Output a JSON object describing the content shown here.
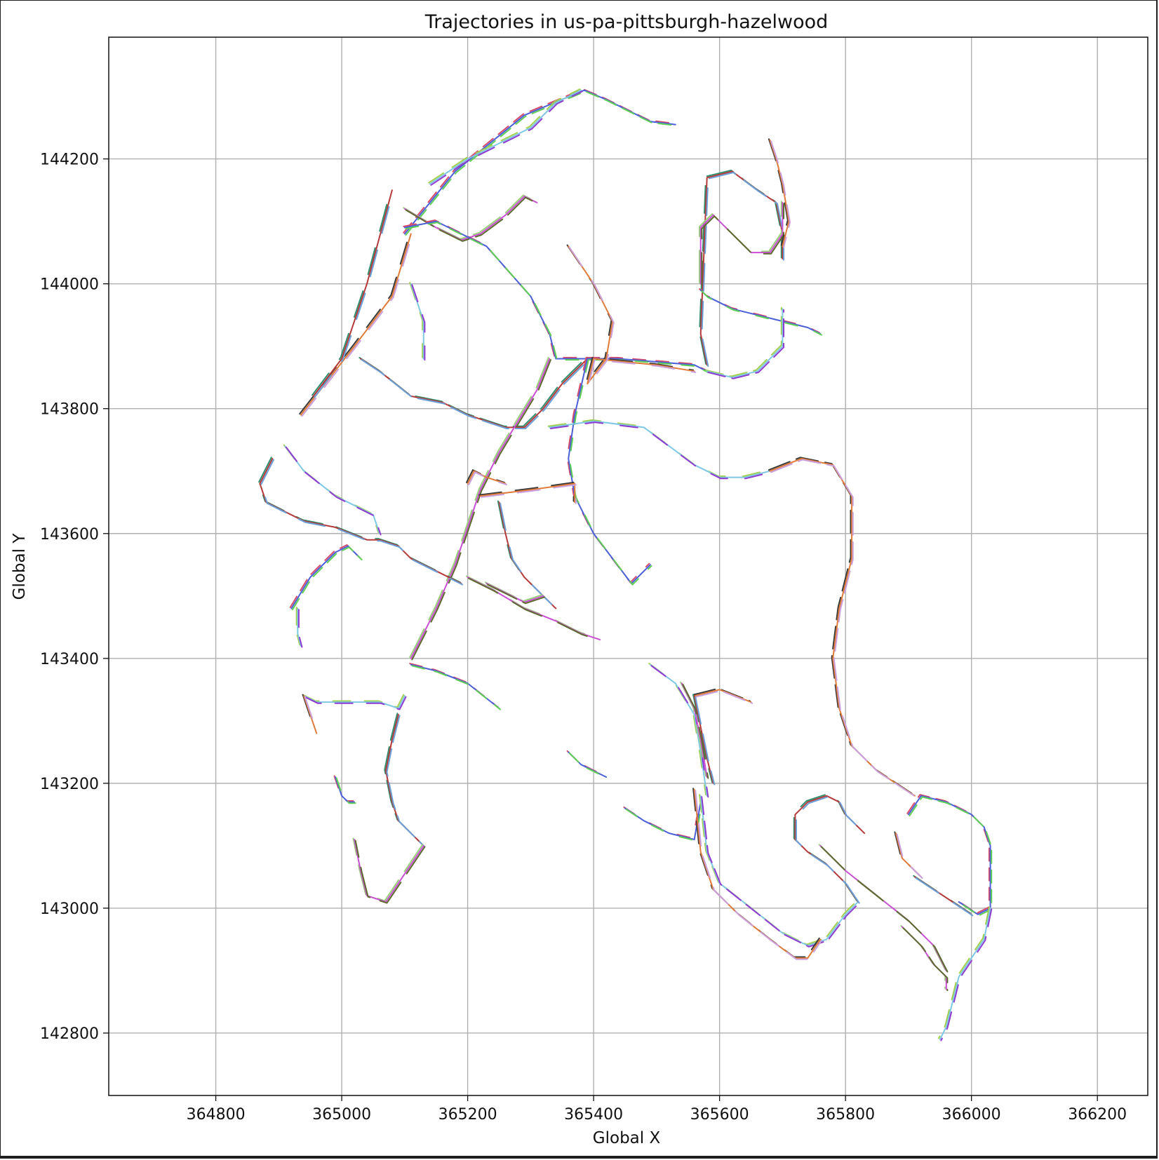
{
  "chart_data": {
    "type": "line",
    "title": "Trajectories in us-pa-pittsburgh-hazelwood",
    "xlabel": "Global X",
    "ylabel": "Global Y",
    "xlim": [
      364630,
      366280
    ],
    "ylim": [
      142700,
      144395
    ],
    "xticks": [
      364800,
      365000,
      365200,
      365400,
      365600,
      365800,
      366000,
      366200
    ],
    "yticks": [
      142800,
      143000,
      143200,
      143400,
      143600,
      143800,
      144000,
      144200
    ],
    "xtick_labels": [
      "364800",
      "365000",
      "365200",
      "365400",
      "365600",
      "365800",
      "366000",
      "366200"
    ],
    "ytick_labels": [
      "142800",
      "143000",
      "143200",
      "143400",
      "143600",
      "143800",
      "144000",
      "144200"
    ],
    "grid": true,
    "legend": "none",
    "palette": [
      "#d94b6a",
      "#4a5fd8",
      "#5fcf55",
      "#a4d04e",
      "#7ec8e3",
      "#8e3bd0",
      "#3a3a3a",
      "#e07b39",
      "#c9a0dc",
      "#2f8f6f",
      "#b43a3a",
      "#6a9fd8",
      "#9ad17b",
      "#c94fd3",
      "#5e6b2e"
    ],
    "series": [
      {
        "x": [
          365100,
          365180,
          365290,
          365385,
          365420,
          365490,
          365530
        ],
        "y": [
          144080,
          144180,
          144270,
          144310,
          144295,
          144260,
          144255
        ]
      },
      {
        "x": [
          365140,
          365200,
          365300,
          365340,
          365380
        ],
        "y": [
          144160,
          144200,
          144250,
          144290,
          144310
        ]
      },
      {
        "x": [
          364935,
          365020,
          365080,
          365110
        ],
        "y": [
          143790,
          143900,
          143980,
          144080
        ]
      },
      {
        "x": [
          364955,
          365000,
          365040,
          365080
        ],
        "y": [
          143820,
          143880,
          144000,
          144150
        ]
      },
      {
        "x": [
          365100,
          365150,
          365190,
          365220,
          365260,
          365290,
          365310
        ],
        "y": [
          144120,
          144090,
          144070,
          144080,
          144110,
          144140,
          144130
        ]
      },
      {
        "x": [
          365100,
          365150,
          365230,
          365300,
          365330,
          365340,
          365440,
          365560,
          365580
        ],
        "y": [
          144090,
          144100,
          144060,
          143980,
          143920,
          143880,
          143880,
          143870,
          143860
        ]
      },
      {
        "x": [
          365110,
          365130,
          365130
        ],
        "y": [
          144000,
          143940,
          143880
        ]
      },
      {
        "x": [
          365360,
          365400,
          365430,
          365420,
          365390,
          365400,
          365500,
          365560
        ],
        "y": [
          144060,
          144000,
          143940,
          143880,
          143840,
          143880,
          143870,
          143860
        ]
      },
      {
        "x": [
          365030,
          365060,
          365110,
          365160,
          365200,
          365260,
          365290,
          365320,
          365350,
          365380,
          365390
        ],
        "y": [
          143880,
          143860,
          143820,
          143810,
          143790,
          143770,
          143770,
          143800,
          143840,
          143870,
          143880
        ]
      },
      {
        "x": [
          365330,
          365310,
          365280,
          365250,
          365220,
          365200,
          365180,
          365150,
          365120,
          365110
        ],
        "y": [
          143880,
          143830,
          143780,
          143730,
          143670,
          143610,
          143550,
          143480,
          143420,
          143400
        ]
      },
      {
        "x": [
          365390,
          365370,
          365360,
          365370,
          365400,
          365430,
          365460,
          365490
        ],
        "y": [
          143880,
          143790,
          143720,
          143660,
          143600,
          143560,
          143520,
          143550
        ]
      },
      {
        "x": [
          365330,
          365400,
          365480,
          365520,
          365560,
          365580,
          365600,
          365640,
          365680
        ],
        "y": [
          143770,
          143780,
          143770,
          143740,
          143710,
          143700,
          143690,
          143690,
          143700
        ]
      },
      {
        "x": [
          365680,
          365730,
          365780,
          365810,
          365810,
          365790,
          365780,
          365790,
          365810,
          365850,
          365910
        ],
        "y": [
          143700,
          143720,
          143710,
          143660,
          143560,
          143480,
          143400,
          143320,
          143260,
          143220,
          143180
        ]
      },
      {
        "x": [
          365580,
          365570,
          365580,
          365620,
          365660,
          365690,
          365700,
          365700
        ],
        "y": [
          143870,
          143920,
          144170,
          144180,
          144150,
          144130,
          144080,
          144040
        ]
      },
      {
        "x": [
          365570,
          365570,
          365590,
          365620,
          365650,
          365680,
          365700,
          365700
        ],
        "y": [
          144000,
          144090,
          144110,
          144080,
          144050,
          144050,
          144080,
          144130
        ]
      },
      {
        "x": [
          365570,
          365580,
          365620,
          365660,
          365700,
          365740,
          365760
        ],
        "y": [
          143990,
          143980,
          143960,
          143950,
          143940,
          143930,
          143920
        ]
      },
      {
        "x": [
          365580,
          365620,
          365660,
          365700,
          365700
        ],
        "y": [
          143860,
          143850,
          143860,
          143900,
          143960
        ]
      },
      {
        "x": [
          365680,
          365690,
          365700,
          365710,
          365700
        ],
        "y": [
          144230,
          144200,
          144160,
          144100,
          144060
        ]
      },
      {
        "x": [
          364890,
          364870,
          364880,
          364900,
          364940,
          364990,
          365040,
          365060,
          365090,
          365110,
          365150,
          365190
        ],
        "y": [
          143720,
          143680,
          143650,
          143640,
          143620,
          143610,
          143590,
          143590,
          143580,
          143560,
          143540,
          143520
        ]
      },
      {
        "x": [
          365200,
          365240,
          365290,
          365340,
          365380,
          365410
        ],
        "y": [
          143530,
          143510,
          143480,
          143460,
          143440,
          143430
        ]
      },
      {
        "x": [
          364920,
          364950,
          364990,
          365010,
          365030
        ],
        "y": [
          143480,
          143530,
          143570,
          143580,
          143560
        ]
      },
      {
        "x": [
          364930,
          364930,
          364935
        ],
        "y": [
          143480,
          143440,
          143420
        ]
      },
      {
        "x": [
          365220,
          365300,
          365370,
          365370
        ],
        "y": [
          143660,
          143670,
          143680,
          143650
        ]
      },
      {
        "x": [
          365250,
          365260,
          365270,
          365290,
          365320,
          365340
        ],
        "y": [
          143650,
          143600,
          143560,
          143530,
          143500,
          143480
        ]
      },
      {
        "x": [
          365230,
          365250,
          365270,
          365290,
          365320
        ],
        "y": [
          143520,
          143510,
          143500,
          143490,
          143500
        ]
      },
      {
        "x": [
          365110,
          365150,
          365200,
          365250
        ],
        "y": [
          143390,
          143380,
          143360,
          143320
        ]
      },
      {
        "x": [
          364940,
          364960,
          365000,
          365020,
          365060,
          365090,
          365100
        ],
        "y": [
          143340,
          143330,
          143330,
          143330,
          143330,
          143320,
          143340
        ]
      },
      {
        "x": [
          364940,
          364950,
          364960
        ],
        "y": [
          143340,
          143310,
          143280
        ]
      },
      {
        "x": [
          365090,
          365080,
          365070,
          365080,
          365090,
          365110,
          365130
        ],
        "y": [
          143310,
          143270,
          143220,
          143170,
          143140,
          143120,
          143100
        ]
      },
      {
        "x": [
          365130,
          365110,
          365090,
          365070,
          365040,
          365030,
          365020
        ],
        "y": [
          143100,
          143070,
          143040,
          143010,
          143020,
          143060,
          143110
        ]
      },
      {
        "x": [
          364990,
          365000,
          365010,
          365020
        ],
        "y": [
          143210,
          143180,
          143170,
          143170
        ]
      },
      {
        "x": [
          365490,
          365530,
          365560,
          365570,
          365580
        ],
        "y": [
          143390,
          143360,
          143310,
          143250,
          143180
        ]
      },
      {
        "x": [
          365560,
          365580,
          365600,
          365650
        ],
        "y": [
          143340,
          143345,
          143350,
          143330
        ]
      },
      {
        "x": [
          365560,
          365570,
          365580,
          365590
        ],
        "y": [
          143340,
          143290,
          143240,
          143200
        ]
      },
      {
        "x": [
          365540,
          365560,
          365570,
          365580
        ],
        "y": [
          143360,
          143320,
          143270,
          143210
        ]
      },
      {
        "x": [
          365450,
          365480,
          365520,
          365560,
          365570
        ],
        "y": [
          143160,
          143140,
          143120,
          143110,
          143170
        ]
      },
      {
        "x": [
          365570,
          365580,
          365600,
          365650,
          365700,
          365740,
          365770,
          365800,
          365820
        ],
        "y": [
          143180,
          143090,
          143040,
          143000,
          142960,
          142940,
          142950,
          142990,
          143010
        ]
      },
      {
        "x": [
          365560,
          365570,
          365590,
          365630,
          365680,
          365720,
          365740,
          365760
        ],
        "y": [
          143190,
          143090,
          143030,
          142990,
          142950,
          142920,
          142920,
          142950
        ]
      },
      {
        "x": [
          365820,
          365800,
          365770,
          365740,
          365720,
          365720,
          365740,
          365770,
          365790,
          365800,
          365830
        ],
        "y": [
          143010,
          143040,
          143070,
          143090,
          143110,
          143150,
          143170,
          143180,
          143170,
          143150,
          143120
        ]
      },
      {
        "x": [
          365760,
          365800,
          365850,
          365900,
          365940,
          365960
        ],
        "y": [
          143100,
          143060,
          143020,
          142980,
          142940,
          142900
        ]
      },
      {
        "x": [
          365900,
          365920,
          365960,
          366000,
          366020,
          366030,
          366030,
          366010,
          365980
        ],
        "y": [
          143150,
          143180,
          143170,
          143150,
          143130,
          143100,
          143000,
          142990,
          143010
        ]
      },
      {
        "x": [
          366030,
          366020,
          366000,
          365980,
          365970,
          365960,
          365950
        ],
        "y": [
          143000,
          142950,
          142920,
          142890,
          142850,
          142810,
          142790
        ]
      },
      {
        "x": [
          365880,
          365890,
          365910,
          365920
        ],
        "y": [
          143120,
          143080,
          143060,
          143050
        ]
      },
      {
        "x": [
          365910,
          365940,
          365970,
          366000
        ],
        "y": [
          143050,
          143030,
          143010,
          142990
        ]
      },
      {
        "x": [
          365890,
          365900,
          365920,
          365940,
          365960,
          365960
        ],
        "y": [
          142970,
          142960,
          142940,
          142910,
          142890,
          142870
        ]
      },
      {
        "x": [
          365360,
          365380,
          365400,
          365420
        ],
        "y": [
          143250,
          143230,
          143220,
          143210
        ]
      },
      {
        "x": [
          364910,
          364940,
          364990,
          365050,
          365060
        ],
        "y": [
          143740,
          143700,
          143660,
          143630,
          143600
        ]
      },
      {
        "x": [
          365200,
          365210,
          365230,
          365260
        ],
        "y": [
          143680,
          143700,
          143690,
          143680
        ]
      }
    ]
  }
}
